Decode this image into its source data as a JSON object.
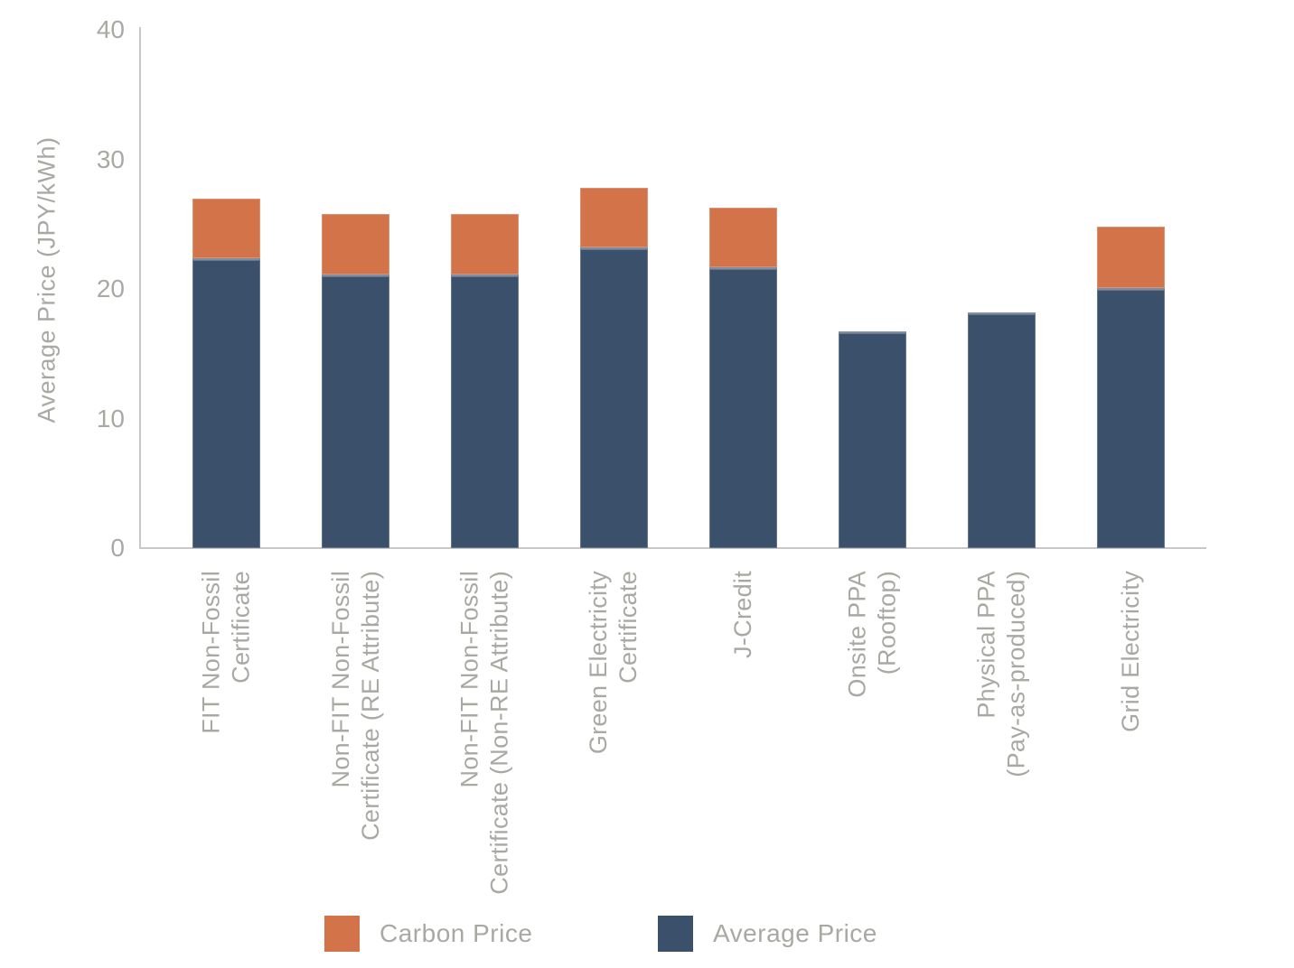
{
  "chart_data": {
    "type": "bar",
    "stacked": true,
    "orientation": "vertical",
    "title": "",
    "xlabel": "",
    "ylabel": "Average Price (JPY/kWh)",
    "ylim": [
      0,
      40
    ],
    "yticks": [
      "0",
      "10",
      "20",
      "30",
      "40"
    ],
    "grid": false,
    "legend_position": "bottom",
    "categories": [
      {
        "label": "FIT Non-Fossil Certificate",
        "lines": [
          "FIT Non-Fossil",
          "Certificate"
        ]
      },
      {
        "label": "Non-FIT Non-Fossil Certificate (RE Attribute)",
        "lines": [
          "Non-FIT Non-Fossil",
          "Certificate (RE Attribute)"
        ]
      },
      {
        "label": "Non-FIT Non-Fossil Certificate (Non-RE Attribute)",
        "lines": [
          "Non-FIT Non-Fossil",
          "Certificate (Non-RE Attribute)"
        ]
      },
      {
        "label": "Green Electricity Certificate",
        "lines": [
          "Green Electricity",
          "Certificate"
        ]
      },
      {
        "label": "J-Credit",
        "lines": [
          "J-Credit"
        ]
      },
      {
        "label": "Onsite PPA (Rooftop)",
        "lines": [
          "Onsite PPA",
          "(Rooftop)"
        ]
      },
      {
        "label": "Physical PPA (Pay-as-produced)",
        "lines": [
          "Physical PPA",
          "(Pay-as-produced)"
        ]
      },
      {
        "label": "Grid Electricity",
        "lines": [
          "Grid Electricity"
        ]
      }
    ],
    "series": [
      {
        "name": "Average Price",
        "color": "#3B506B",
        "values": [
          22.4,
          21.1,
          21.1,
          23.2,
          21.7,
          16.7,
          18.2,
          20.1
        ]
      },
      {
        "name": "Carbon Price",
        "color": "#D2734A",
        "values": [
          4.6,
          4.7,
          4.7,
          4.6,
          4.6,
          0,
          0,
          4.7
        ]
      }
    ],
    "totals": [
      27.0,
      25.8,
      25.8,
      27.8,
      26.3,
      16.7,
      18.2,
      24.8
    ],
    "legend": {
      "items": [
        {
          "label": "Carbon Price",
          "color": "#D2734A"
        },
        {
          "label": "Average Price",
          "color": "#3B506B"
        }
      ]
    }
  },
  "colors": {
    "carbon_price": "#D2734A",
    "average_price": "#3B506B",
    "axis_line": "#C8C8C8",
    "text_gray": "#A9A9A4",
    "background": "#FFFFFF"
  }
}
